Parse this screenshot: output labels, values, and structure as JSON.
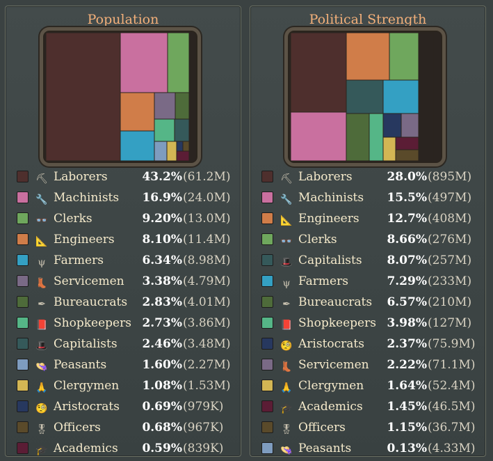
{
  "left": {
    "title": "Population",
    "tiles": [
      {
        "c": "#4e2f2d"
      },
      {
        "c": "#c9709f"
      },
      {
        "c": "#6fa75d"
      },
      {
        "c": "#d07d49"
      },
      {
        "c": "#7a6a86"
      },
      {
        "c": "#4e6b3a"
      },
      {
        "c": "#55b687"
      },
      {
        "c": "#35595a"
      },
      {
        "c": "#34a0c3"
      },
      {
        "c": "#7e9cbf"
      },
      {
        "c": "#d3b654"
      },
      {
        "c": "#27385f"
      },
      {
        "c": "#5a4a2a"
      },
      {
        "c": "#5b1d35"
      }
    ],
    "rows": [
      {
        "name": "Laborers",
        "pct": "43.2%",
        "abs": "(61.2M)",
        "color": "#4e2f2d",
        "icon": "shovel-icon",
        "glyph": "⛏"
      },
      {
        "name": "Machinists",
        "pct": "16.9%",
        "abs": "(24.0M)",
        "color": "#c9709f",
        "icon": "wrench-icon",
        "glyph": "🔧"
      },
      {
        "name": "Clerks",
        "pct": "9.20%",
        "abs": "(13.0M)",
        "color": "#6fa75d",
        "icon": "glasses-icon",
        "glyph": "👓"
      },
      {
        "name": "Engineers",
        "pct": "8.10%",
        "abs": "(11.4M)",
        "color": "#d07d49",
        "icon": "compass-icon",
        "glyph": "📐"
      },
      {
        "name": "Farmers",
        "pct": "6.34%",
        "abs": "(8.98M)",
        "color": "#34a0c3",
        "icon": "pitchfork-icon",
        "glyph": "ψ"
      },
      {
        "name": "Servicemen",
        "pct": "3.38%",
        "abs": "(4.79M)",
        "color": "#7a6a86",
        "icon": "boot-icon",
        "glyph": "👢"
      },
      {
        "name": "Bureaucrats",
        "pct": "2.83%",
        "abs": "(4.01M)",
        "color": "#4e6b3a",
        "icon": "quill-icon",
        "glyph": "✒"
      },
      {
        "name": "Shopkeepers",
        "pct": "2.73%",
        "abs": "(3.86M)",
        "color": "#55b687",
        "icon": "ledger-icon",
        "glyph": "📕"
      },
      {
        "name": "Capitalists",
        "pct": "2.46%",
        "abs": "(3.48M)",
        "color": "#35595a",
        "icon": "top-hat-icon",
        "glyph": "🎩"
      },
      {
        "name": "Peasants",
        "pct": "1.60%",
        "abs": "(2.27M)",
        "color": "#7e9cbf",
        "icon": "straw-hat-icon",
        "glyph": "👒"
      },
      {
        "name": "Clergymen",
        "pct": "1.08%",
        "abs": "(1.53M)",
        "color": "#d3b654",
        "icon": "praying-hands-icon",
        "glyph": "🙏"
      },
      {
        "name": "Aristocrats",
        "pct": "0.69%",
        "abs": "(979K)",
        "color": "#27385f",
        "icon": "monocle-icon",
        "glyph": "🧐"
      },
      {
        "name": "Officers",
        "pct": "0.68%",
        "abs": "(967K)",
        "color": "#5a4a2a",
        "icon": "medal-icon",
        "glyph": "🎖"
      },
      {
        "name": "Academics",
        "pct": "0.59%",
        "abs": "(839K)",
        "color": "#5b1d35",
        "icon": "mortarboard-icon",
        "glyph": "🎓"
      }
    ]
  },
  "right": {
    "title": "Political Strength",
    "tiles": [
      {
        "c": "#4e2f2d"
      },
      {
        "c": "#c9709f"
      },
      {
        "c": "#d07d49"
      },
      {
        "c": "#6fa75d"
      },
      {
        "c": "#35595a"
      },
      {
        "c": "#34a0c3"
      },
      {
        "c": "#4e6b3a"
      },
      {
        "c": "#55b687"
      },
      {
        "c": "#27385f"
      },
      {
        "c": "#7a6a86"
      },
      {
        "c": "#d3b654"
      },
      {
        "c": "#5b1d35"
      },
      {
        "c": "#5a4a2a"
      },
      {
        "c": "#7e9cbf"
      }
    ],
    "rows": [
      {
        "name": "Laborers",
        "pct": "28.0%",
        "abs": "(895M)",
        "color": "#4e2f2d",
        "icon": "shovel-icon",
        "glyph": "⛏"
      },
      {
        "name": "Machinists",
        "pct": "15.5%",
        "abs": "(497M)",
        "color": "#c9709f",
        "icon": "wrench-icon",
        "glyph": "🔧"
      },
      {
        "name": "Engineers",
        "pct": "12.7%",
        "abs": "(408M)",
        "color": "#d07d49",
        "icon": "compass-icon",
        "glyph": "📐"
      },
      {
        "name": "Clerks",
        "pct": "8.66%",
        "abs": "(276M)",
        "color": "#6fa75d",
        "icon": "glasses-icon",
        "glyph": "👓"
      },
      {
        "name": "Capitalists",
        "pct": "8.07%",
        "abs": "(257M)",
        "color": "#35595a",
        "icon": "top-hat-icon",
        "glyph": "🎩"
      },
      {
        "name": "Farmers",
        "pct": "7.29%",
        "abs": "(233M)",
        "color": "#34a0c3",
        "icon": "pitchfork-icon",
        "glyph": "ψ"
      },
      {
        "name": "Bureaucrats",
        "pct": "6.57%",
        "abs": "(210M)",
        "color": "#4e6b3a",
        "icon": "quill-icon",
        "glyph": "✒"
      },
      {
        "name": "Shopkeepers",
        "pct": "3.98%",
        "abs": "(127M)",
        "color": "#55b687",
        "icon": "ledger-icon",
        "glyph": "📕"
      },
      {
        "name": "Aristocrats",
        "pct": "2.37%",
        "abs": "(75.9M)",
        "color": "#27385f",
        "icon": "monocle-icon",
        "glyph": "🧐"
      },
      {
        "name": "Servicemen",
        "pct": "2.22%",
        "abs": "(71.1M)",
        "color": "#7a6a86",
        "icon": "boot-icon",
        "glyph": "👢"
      },
      {
        "name": "Clergymen",
        "pct": "1.64%",
        "abs": "(52.4M)",
        "color": "#d3b654",
        "icon": "praying-hands-icon",
        "glyph": "🙏"
      },
      {
        "name": "Academics",
        "pct": "1.45%",
        "abs": "(46.5M)",
        "color": "#5b1d35",
        "icon": "mortarboard-icon",
        "glyph": "🎓"
      },
      {
        "name": "Officers",
        "pct": "1.15%",
        "abs": "(36.7M)",
        "color": "#5a4a2a",
        "icon": "medal-icon",
        "glyph": "🎖"
      },
      {
        "name": "Peasants",
        "pct": "0.13%",
        "abs": "(4.33M)",
        "color": "#7e9cbf",
        "icon": "straw-hat-icon",
        "glyph": "👒"
      }
    ]
  }
}
